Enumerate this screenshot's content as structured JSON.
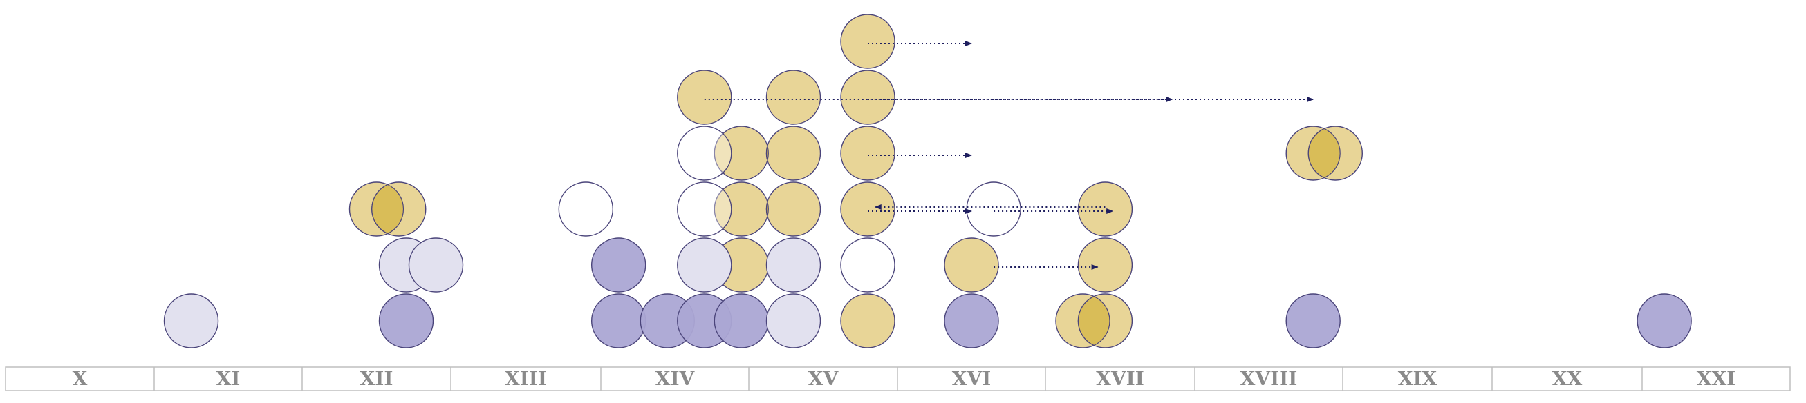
{
  "chart_data": {
    "type": "scatter",
    "title": "",
    "xlabel": "",
    "ylabel": "",
    "categories": [
      "X",
      "XI",
      "XII",
      "XIII",
      "XIV",
      "XV",
      "XVI",
      "XVII",
      "XVIII",
      "XIX",
      "XX",
      "XXI"
    ],
    "colors": {
      "gold": "#e8d597",
      "gold_overlap": "#d9bd58",
      "purple": "#aba6d4",
      "lavender": "#e2e1ef",
      "outline": "#4a447a",
      "hollow_fill": "#ffffff",
      "arrow": "#1f1f5f",
      "axis_border": "#bfbfbf",
      "label": "#8a8a8a"
    },
    "series": [
      {
        "kind": "gold",
        "points": [
          {
            "x": 12.5,
            "y": 3
          },
          {
            "x": 12.65,
            "y": 3
          },
          {
            "x": 14.7,
            "y": 5
          },
          {
            "x": 14.95,
            "y": 4
          },
          {
            "x": 14.95,
            "y": 3
          },
          {
            "x": 14.95,
            "y": 2
          },
          {
            "x": 15.3,
            "y": 5
          },
          {
            "x": 15.3,
            "y": 4
          },
          {
            "x": 15.3,
            "y": 3
          },
          {
            "x": 15.8,
            "y": 6
          },
          {
            "x": 15.8,
            "y": 5
          },
          {
            "x": 15.8,
            "y": 4
          },
          {
            "x": 15.8,
            "y": 3
          },
          {
            "x": 15.8,
            "y": 1
          },
          {
            "x": 16.5,
            "y": 2
          },
          {
            "x": 17.4,
            "y": 3
          },
          {
            "x": 17.4,
            "y": 2
          },
          {
            "x": 17.25,
            "y": 1
          },
          {
            "x": 17.4,
            "y": 1
          },
          {
            "x": 18.8,
            "y": 4
          },
          {
            "x": 18.95,
            "y": 4
          }
        ]
      },
      {
        "kind": "purple",
        "points": [
          {
            "x": 12.7,
            "y": 1
          },
          {
            "x": 14.12,
            "y": 2
          },
          {
            "x": 14.12,
            "y": 1
          },
          {
            "x": 14.45,
            "y": 1
          },
          {
            "x": 14.7,
            "y": 1
          },
          {
            "x": 14.95,
            "y": 1
          },
          {
            "x": 16.5,
            "y": 1
          },
          {
            "x": 18.8,
            "y": 1
          },
          {
            "x": 21.15,
            "y": 1
          }
        ]
      },
      {
        "kind": "lavender",
        "points": [
          {
            "x": 11.25,
            "y": 1
          },
          {
            "x": 12.7,
            "y": 2
          },
          {
            "x": 12.9,
            "y": 2
          },
          {
            "x": 14.7,
            "y": 2
          },
          {
            "x": 15.3,
            "y": 2
          },
          {
            "x": 15.3,
            "y": 1
          }
        ]
      },
      {
        "kind": "hollow",
        "points": [
          {
            "x": 13.9,
            "y": 3
          },
          {
            "x": 14.7,
            "y": 4
          },
          {
            "x": 14.7,
            "y": 3
          },
          {
            "x": 15.8,
            "y": 2
          },
          {
            "x": 16.65,
            "y": 3
          }
        ]
      }
    ],
    "arrows": [
      {
        "from": {
          "x": 15.8,
          "y": 6
        },
        "to": {
          "x": 16.5,
          "y": 6
        }
      },
      {
        "from": {
          "x": 14.7,
          "y": 5
        },
        "to": {
          "x": 17.85,
          "y": 5
        }
      },
      {
        "from": {
          "x": 15.8,
          "y": 5
        },
        "to": {
          "x": 18.8,
          "y": 5
        }
      },
      {
        "from": {
          "x": 15.8,
          "y": 4
        },
        "to": {
          "x": 16.5,
          "y": 4
        }
      },
      {
        "from": {
          "x": 17.4,
          "y": 3
        },
        "to": {
          "x": 15.85,
          "y": 3
        }
      },
      {
        "from": {
          "x": 15.8,
          "y": 3
        },
        "to": {
          "x": 16.5,
          "y": 3
        }
      },
      {
        "from": {
          "x": 16.65,
          "y": 3
        },
        "to": {
          "x": 17.45,
          "y": 3
        }
      },
      {
        "from": {
          "x": 16.65,
          "y": 2
        },
        "to": {
          "x": 17.35,
          "y": 2
        }
      }
    ]
  }
}
